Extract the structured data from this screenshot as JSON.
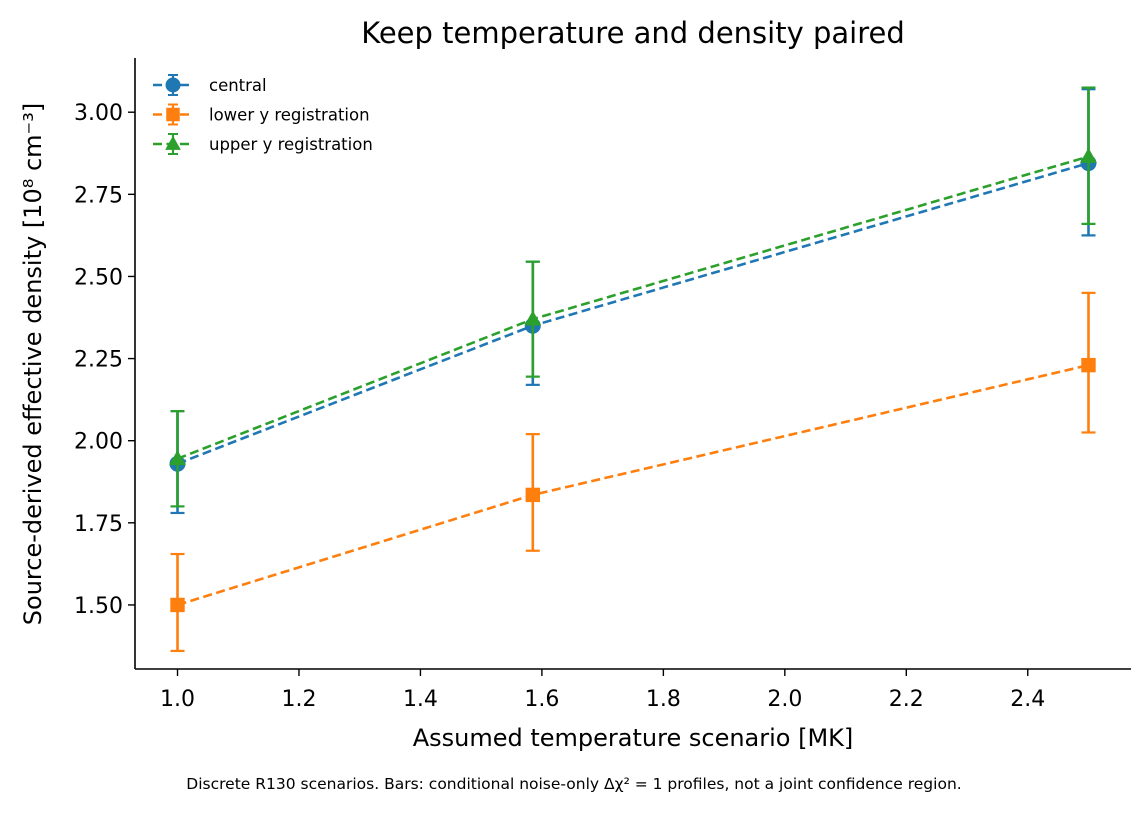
{
  "chart_data": {
    "type": "line",
    "title": "Keep temperature and density paired",
    "xlabel": "Assumed temperature scenario [MK]",
    "ylabel": "Source-derived effective density [10⁸ cm⁻³]",
    "caption": "Discrete R130 scenarios. Bars: conditional noise-only Δχ² = 1 profiles, not a joint confidence region.",
    "xlim": [
      0.93,
      2.57
    ],
    "ylim": [
      1.305,
      3.165
    ],
    "xticks": [
      1.0,
      1.2,
      1.4,
      1.6,
      1.8,
      2.0,
      2.2,
      2.4
    ],
    "xtick_labels": [
      "1.0",
      "1.2",
      "1.4",
      "1.6",
      "1.8",
      "2.0",
      "2.2",
      "2.4"
    ],
    "yticks": [
      1.5,
      1.75,
      2.0,
      2.25,
      2.5,
      2.75,
      3.0
    ],
    "ytick_labels": [
      "1.50",
      "1.75",
      "2.00",
      "2.25",
      "2.50",
      "2.75",
      "3.00"
    ],
    "grid": false,
    "legend_position": "top-left",
    "series": [
      {
        "name": "central",
        "color": "#1f77b4",
        "marker": "circle",
        "linestyle": "dashed",
        "x": [
          1.0,
          1.585,
          2.5
        ],
        "y": [
          1.93,
          2.35,
          2.845
        ],
        "yerr_low": [
          1.78,
          2.17,
          2.625
        ],
        "yerr_high": [
          2.09,
          2.545,
          3.07
        ]
      },
      {
        "name": "lower y registration",
        "color": "#ff7f0e",
        "marker": "square",
        "linestyle": "dashed",
        "x": [
          1.0,
          1.585,
          2.5
        ],
        "y": [
          1.5,
          1.835,
          2.23
        ],
        "yerr_low": [
          1.36,
          1.665,
          2.025
        ],
        "yerr_high": [
          1.655,
          2.02,
          2.45
        ]
      },
      {
        "name": "upper y registration",
        "color": "#2ca02c",
        "marker": "triangle",
        "linestyle": "dashed",
        "x": [
          1.0,
          1.585,
          2.5
        ],
        "y": [
          1.945,
          2.37,
          2.865
        ],
        "yerr_low": [
          1.8,
          2.195,
          2.66
        ],
        "yerr_high": [
          2.09,
          2.545,
          3.075
        ]
      }
    ]
  }
}
